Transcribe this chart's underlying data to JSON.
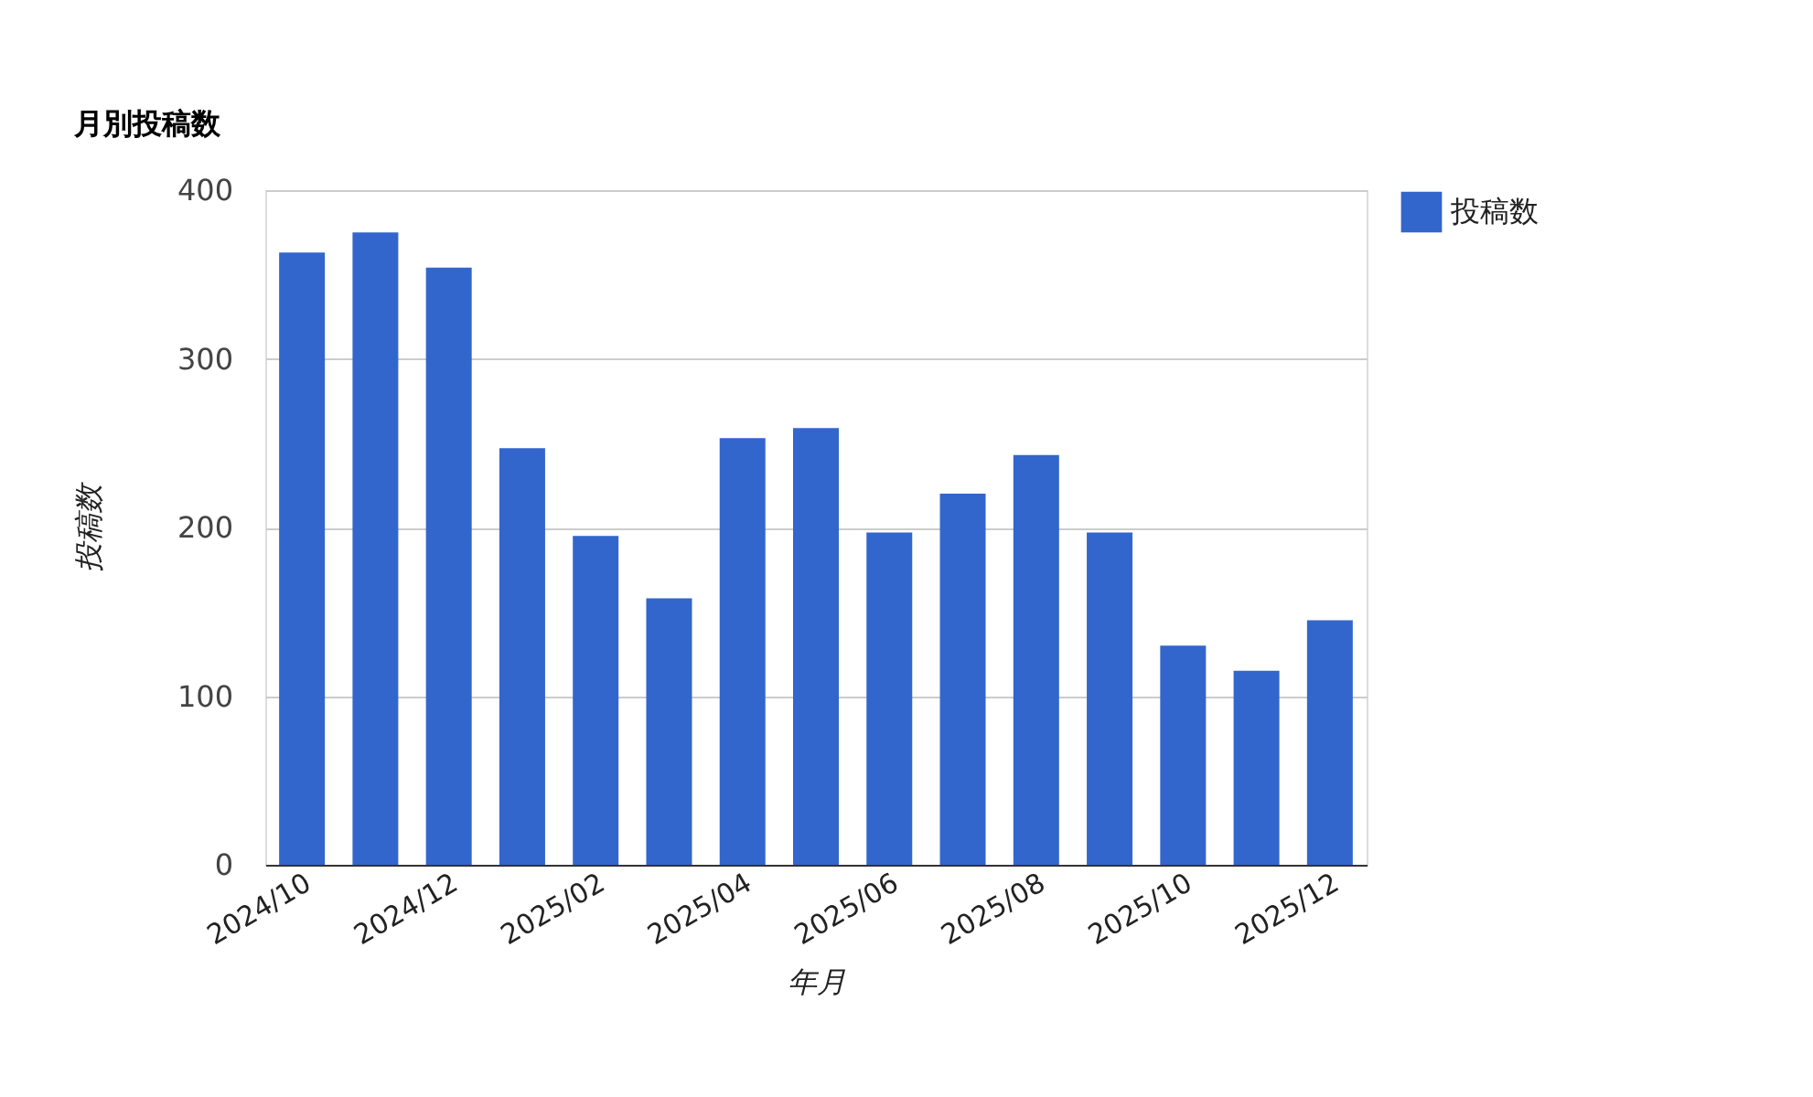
{
  "chart_data": {
    "type": "bar",
    "title": "月別投稿数",
    "xlabel": "年月",
    "ylabel": "投稿数",
    "categories": [
      "2024/10",
      null,
      "2024/12",
      null,
      "2025/02",
      null,
      "2025/04",
      null,
      "2025/06",
      null,
      "2025/08",
      null,
      "2025/10",
      null,
      "2025/12"
    ],
    "series": [
      {
        "name": "投稿数",
        "color": "#3366cc",
        "values": [
          363,
          375,
          354,
          247,
          195,
          158,
          253,
          259,
          197,
          220,
          243,
          197,
          130,
          115,
          145
        ]
      }
    ],
    "ylim": [
      0,
      400
    ],
    "yticks": [
      0,
      100,
      200,
      300,
      400
    ],
    "grid": "y",
    "legend": "top right"
  }
}
